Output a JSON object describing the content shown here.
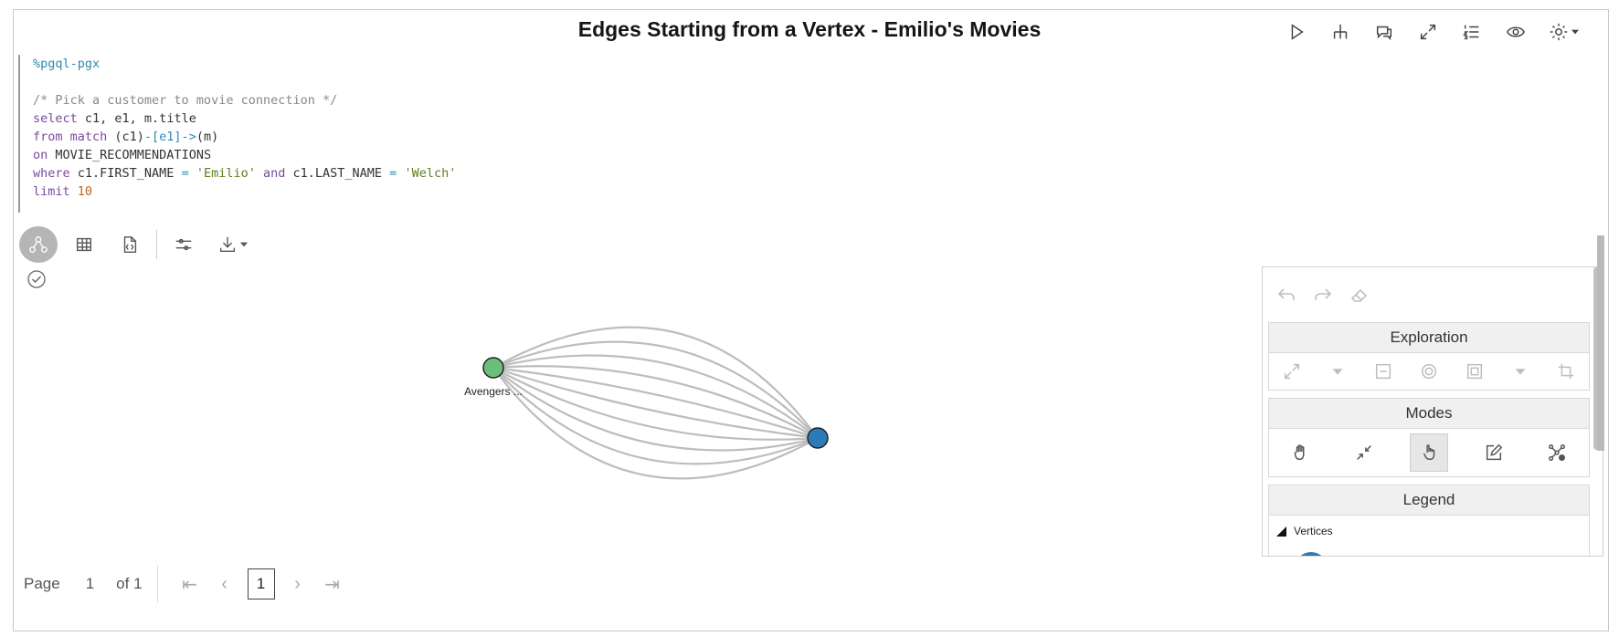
{
  "title": "Edges Starting from a Vertex - Emilio's Movies",
  "top_toolbar": [
    "run-icon",
    "hierarchy-icon",
    "comments-icon",
    "expand-icon",
    "list-numbered-icon",
    "eye-icon",
    "gear-icon"
  ],
  "code": {
    "magic": "%pgql-pgx",
    "comment": "/* Pick a customer to movie connection */",
    "l1_kw": "select",
    "l1_rest": " c1, e1, m.title",
    "l2_kw": "from match",
    "l2_a": " (c1)",
    "l2_edge": "-[e1]->",
    "l2_b": "(m)",
    "l3_kw": "on",
    "l3_rest": " MOVIE_RECOMMENDATIONS",
    "l4_kw": "where",
    "l4_a": " c1.FIRST_NAME ",
    "l4_eq1": "=",
    "l4_s1": " 'Emilio' ",
    "l4_and": "and",
    "l4_b": " c1.LAST_NAME ",
    "l4_eq2": "=",
    "l4_s2": " 'Welch'",
    "l5_kw": "limit",
    "l5_num": " 10"
  },
  "graph": {
    "movie_label": "Avengers ...",
    "movie_color": "#6bbf7a",
    "customer_color": "#2c7bb6",
    "edge_count": 10
  },
  "panel": {
    "exploration": "Exploration",
    "modes": "Modes",
    "legend": "Legend",
    "vertices": "Vertices"
  },
  "pager": {
    "page_label": "Page",
    "page_num": "1",
    "of_label": "of 1",
    "current": "1"
  }
}
